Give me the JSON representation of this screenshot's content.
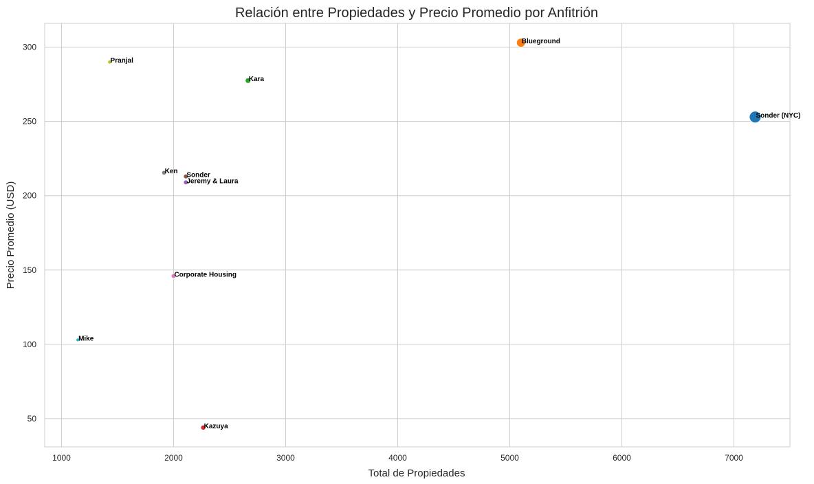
{
  "chart_data": {
    "type": "scatter",
    "title": "Relación entre Propiedades y Precio Promedio por Anfitrión",
    "xlabel": "Total de Propiedades",
    "ylabel": "Precio Promedio (USD)",
    "xlim": [
      850,
      7500
    ],
    "ylim": [
      31,
      316
    ],
    "xticks": [
      1000,
      2000,
      3000,
      4000,
      5000,
      6000,
      7000
    ],
    "yticks": [
      50,
      100,
      150,
      200,
      250,
      300
    ],
    "grid": true,
    "legend": "none",
    "points": [
      {
        "label": "Sonder (NYC)",
        "x": 7190,
        "y": 253,
        "size": 7190,
        "color": "#1f77b4"
      },
      {
        "label": "Blueground",
        "x": 5100,
        "y": 303,
        "size": 5100,
        "color": "#ff7f0e"
      },
      {
        "label": "Kara",
        "x": 2665,
        "y": 277.5,
        "size": 2665,
        "color": "#2ca02c"
      },
      {
        "label": "Kazuya",
        "x": 2265,
        "y": 44,
        "size": 2265,
        "color": "#d62728"
      },
      {
        "label": "Jeremy & Laura",
        "x": 2110,
        "y": 209,
        "size": 2110,
        "color": "#9467bd"
      },
      {
        "label": "Sonder",
        "x": 2110,
        "y": 213,
        "size": 2110,
        "color": "#8c564b"
      },
      {
        "label": "Corporate Housing",
        "x": 2000,
        "y": 146,
        "size": 2000,
        "color": "#e377c2"
      },
      {
        "label": "Ken",
        "x": 1915,
        "y": 215.5,
        "size": 1915,
        "color": "#7f7f7f"
      },
      {
        "label": "Pranjal",
        "x": 1430,
        "y": 290,
        "size": 1430,
        "color": "#bcbd22"
      },
      {
        "label": "Mike",
        "x": 1145,
        "y": 103,
        "size": 1145,
        "color": "#17becf"
      }
    ]
  }
}
